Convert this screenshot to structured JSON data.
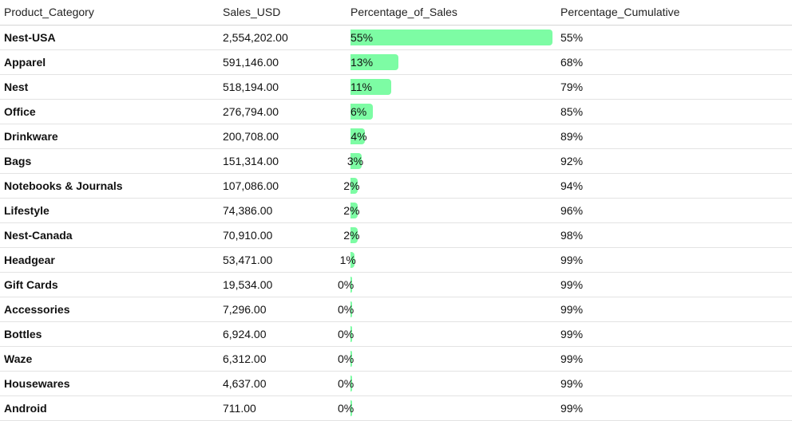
{
  "table": {
    "headers": [
      "Product_Category",
      "Sales_USD",
      "Percentage_of_Sales",
      "Percentage_Cumulative"
    ],
    "bar_color": "#7dfca4"
  },
  "chart_data": {
    "type": "table",
    "columns": [
      "Product_Category",
      "Sales_USD",
      "Percentage_of_Sales",
      "Percentage_Cumulative"
    ],
    "rows": [
      {
        "category": "Nest-USA",
        "sales": "2,554,202.00",
        "pct_label": "55%",
        "pct": 55,
        "cum": "55%"
      },
      {
        "category": "Apparel",
        "sales": "591,146.00",
        "pct_label": "13%",
        "pct": 13,
        "cum": "68%"
      },
      {
        "category": "Nest",
        "sales": "518,194.00",
        "pct_label": "11%",
        "pct": 11,
        "cum": "79%"
      },
      {
        "category": "Office",
        "sales": "276,794.00",
        "pct_label": "6%",
        "pct": 6,
        "cum": "85%"
      },
      {
        "category": "Drinkware",
        "sales": "200,708.00",
        "pct_label": "4%",
        "pct": 4,
        "cum": "89%"
      },
      {
        "category": "Bags",
        "sales": "151,314.00",
        "pct_label": "3%",
        "pct": 3,
        "cum": "92%"
      },
      {
        "category": "Notebooks & Journals",
        "sales": "107,086.00",
        "pct_label": "2%",
        "pct": 2,
        "cum": "94%"
      },
      {
        "category": "Lifestyle",
        "sales": "74,386.00",
        "pct_label": "2%",
        "pct": 2,
        "cum": "96%"
      },
      {
        "category": "Nest-Canada",
        "sales": "70,910.00",
        "pct_label": "2%",
        "pct": 2,
        "cum": "98%"
      },
      {
        "category": "Headgear",
        "sales": "53,471.00",
        "pct_label": "1%",
        "pct": 1,
        "cum": "99%"
      },
      {
        "category": "Gift Cards",
        "sales": "19,534.00",
        "pct_label": "0%",
        "pct": 0.4,
        "cum": "99%"
      },
      {
        "category": "Accessories",
        "sales": "7,296.00",
        "pct_label": "0%",
        "pct": 0.2,
        "cum": "99%"
      },
      {
        "category": "Bottles",
        "sales": "6,924.00",
        "pct_label": "0%",
        "pct": 0.2,
        "cum": "99%"
      },
      {
        "category": "Waze",
        "sales": "6,312.00",
        "pct_label": "0%",
        "pct": 0.2,
        "cum": "99%"
      },
      {
        "category": "Housewares",
        "sales": "4,637.00",
        "pct_label": "0%",
        "pct": 0.1,
        "cum": "99%"
      },
      {
        "category": "Android",
        "sales": "711.00",
        "pct_label": "0%",
        "pct": 0.1,
        "cum": "99%"
      }
    ]
  }
}
